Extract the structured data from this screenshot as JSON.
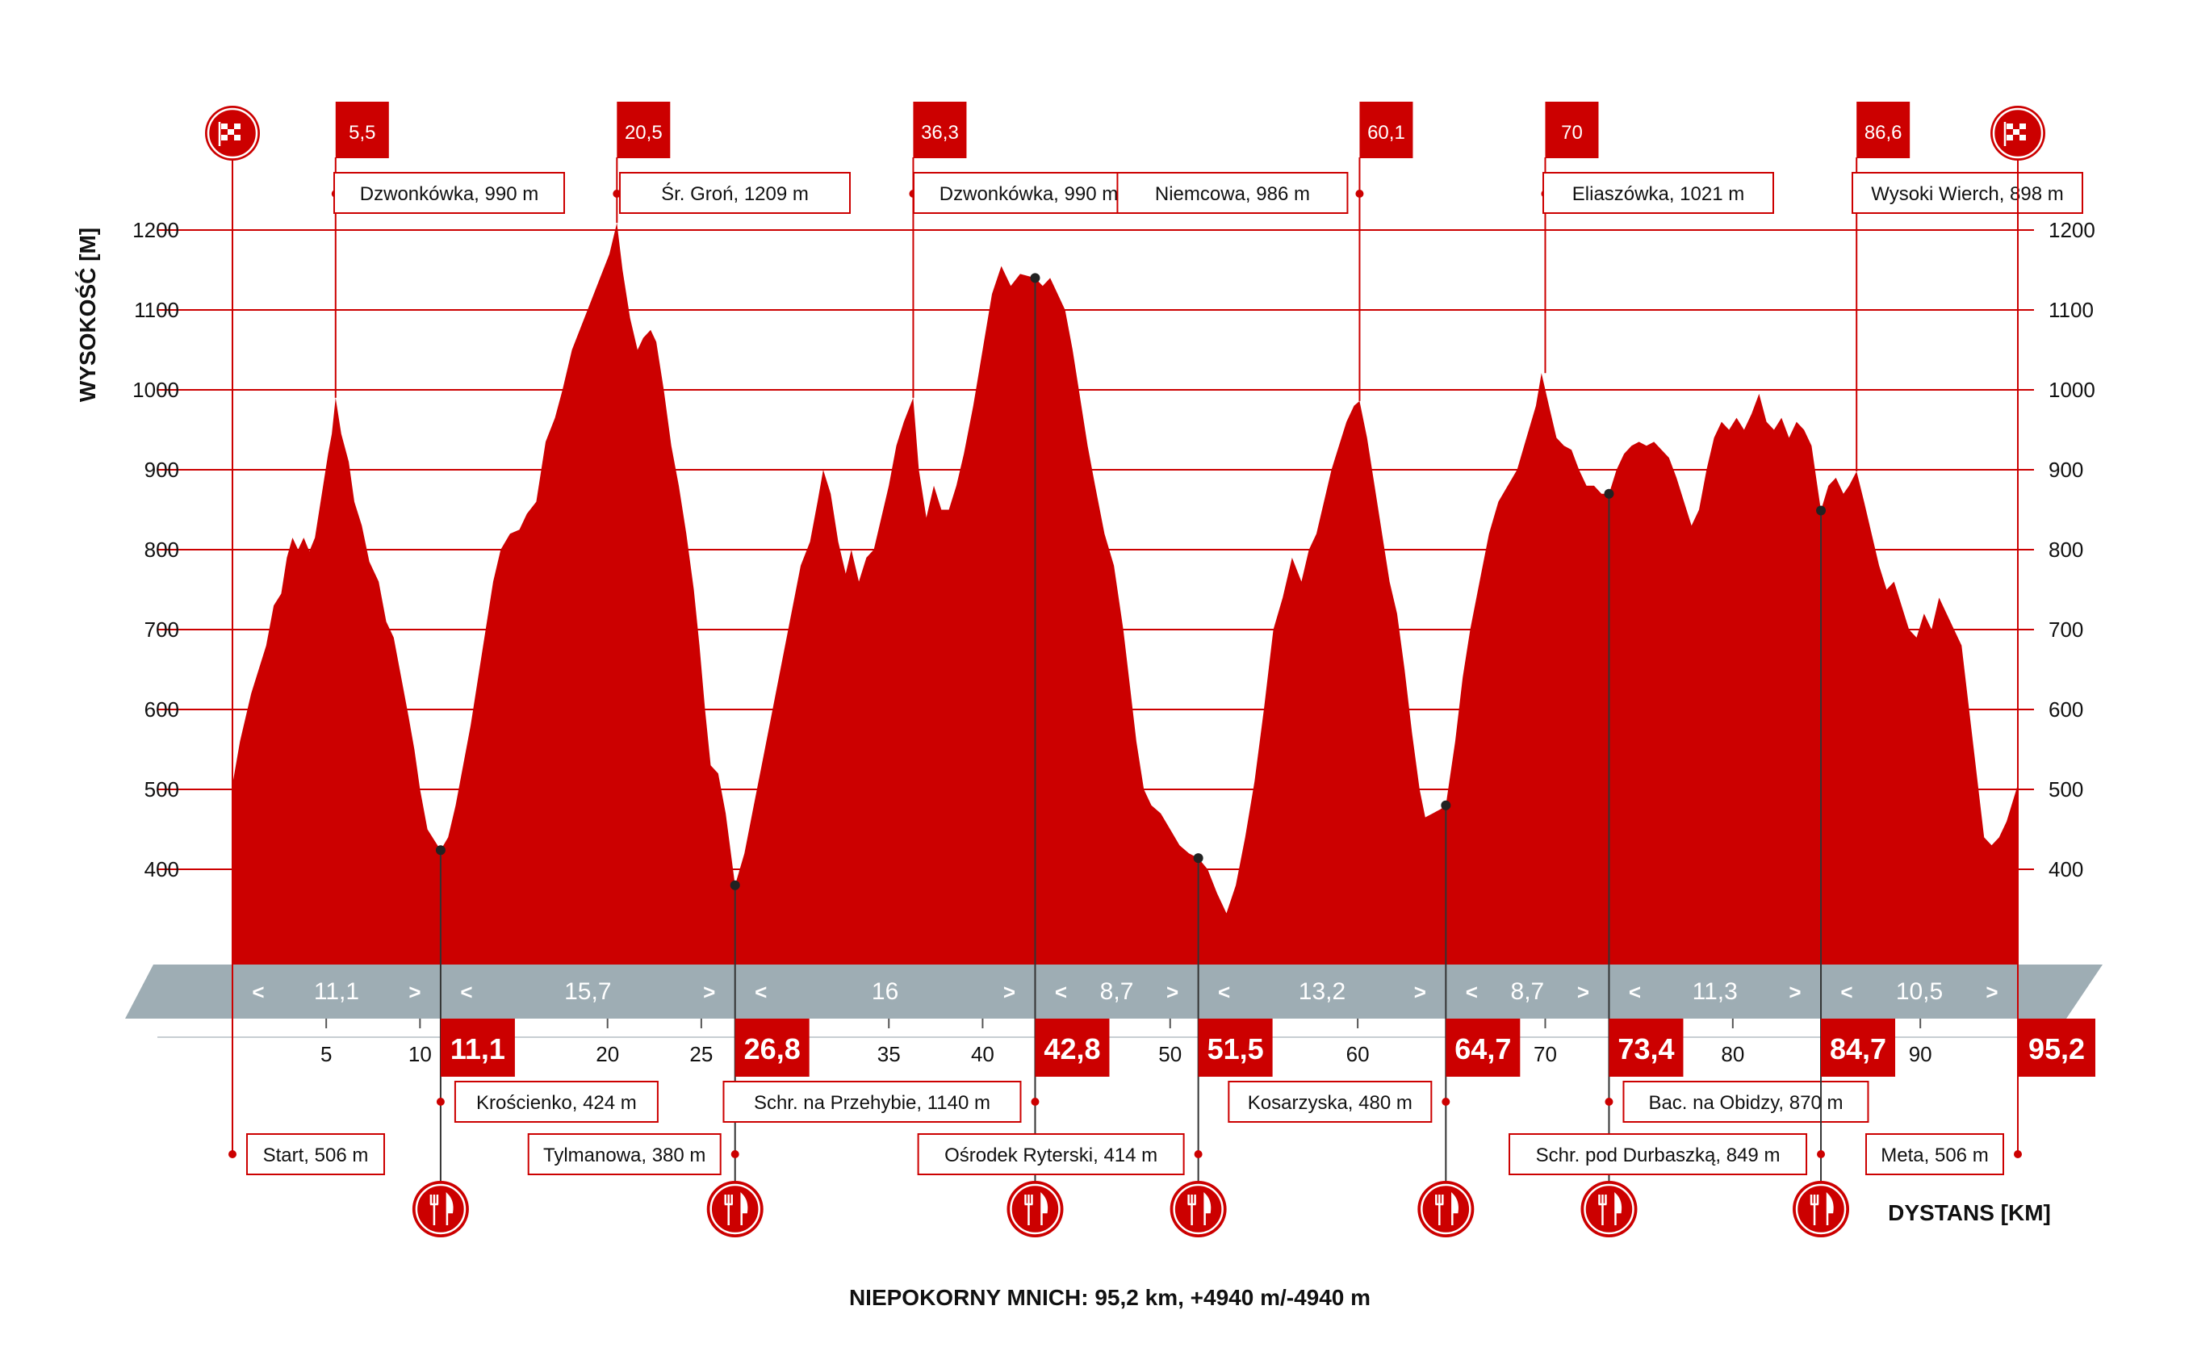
{
  "chart_data": {
    "type": "area",
    "title": "NIEPOKORNY MNICH: 95,2 km, +4940 m/-4940 m",
    "xlabel": "DYSTANS [KM]",
    "ylabel": "WYSOKOŚĆ [M]",
    "xlim": [
      0,
      95.2
    ],
    "ylim": [
      300,
      1200
    ],
    "yticks": [
      400,
      500,
      600,
      700,
      800,
      900,
      1000,
      1100,
      1200
    ],
    "xticks": [
      5,
      10,
      20,
      25,
      35,
      40,
      50,
      60,
      70,
      80,
      90
    ],
    "color": "#cc0000",
    "profile": [
      [
        0,
        506
      ],
      [
        0.4,
        560
      ],
      [
        1.0,
        620
      ],
      [
        1.8,
        680
      ],
      [
        2.2,
        730
      ],
      [
        2.6,
        745
      ],
      [
        2.9,
        790
      ],
      [
        3.2,
        815
      ],
      [
        3.5,
        800
      ],
      [
        3.8,
        815
      ],
      [
        4.1,
        798
      ],
      [
        4.4,
        815
      ],
      [
        4.7,
        860
      ],
      [
        5.1,
        920
      ],
      [
        5.3,
        945
      ],
      [
        5.5,
        990
      ],
      [
        5.8,
        945
      ],
      [
        6.2,
        910
      ],
      [
        6.5,
        860
      ],
      [
        6.9,
        830
      ],
      [
        7.3,
        785
      ],
      [
        7.8,
        760
      ],
      [
        8.2,
        710
      ],
      [
        8.6,
        690
      ],
      [
        9.0,
        640
      ],
      [
        9.4,
        590
      ],
      [
        9.7,
        550
      ],
      [
        10.0,
        500
      ],
      [
        10.4,
        450
      ],
      [
        10.8,
        435
      ],
      [
        11.1,
        424
      ],
      [
        11.5,
        440
      ],
      [
        11.9,
        480
      ],
      [
        12.3,
        530
      ],
      [
        12.7,
        580
      ],
      [
        13.1,
        640
      ],
      [
        13.5,
        700
      ],
      [
        13.9,
        760
      ],
      [
        14.3,
        800
      ],
      [
        14.8,
        820
      ],
      [
        15.3,
        825
      ],
      [
        15.7,
        845
      ],
      [
        16.2,
        860
      ],
      [
        16.7,
        935
      ],
      [
        17.2,
        965
      ],
      [
        17.6,
        1000
      ],
      [
        18.1,
        1050
      ],
      [
        18.6,
        1080
      ],
      [
        19.1,
        1110
      ],
      [
        19.6,
        1140
      ],
      [
        20.1,
        1170
      ],
      [
        20.5,
        1209
      ],
      [
        20.8,
        1150
      ],
      [
        21.2,
        1090
      ],
      [
        21.6,
        1050
      ],
      [
        21.9,
        1065
      ],
      [
        22.3,
        1075
      ],
      [
        22.6,
        1060
      ],
      [
        23.0,
        1000
      ],
      [
        23.4,
        930
      ],
      [
        23.8,
        880
      ],
      [
        24.2,
        820
      ],
      [
        24.6,
        750
      ],
      [
        24.9,
        680
      ],
      [
        25.2,
        600
      ],
      [
        25.5,
        530
      ],
      [
        25.9,
        520
      ],
      [
        26.3,
        470
      ],
      [
        26.8,
        380
      ],
      [
        27.3,
        420
      ],
      [
        27.8,
        480
      ],
      [
        28.3,
        540
      ],
      [
        28.8,
        600
      ],
      [
        29.3,
        660
      ],
      [
        29.8,
        720
      ],
      [
        30.3,
        780
      ],
      [
        30.8,
        810
      ],
      [
        31.2,
        860
      ],
      [
        31.5,
        900
      ],
      [
        31.9,
        870
      ],
      [
        32.3,
        810
      ],
      [
        32.7,
        770
      ],
      [
        33.0,
        800
      ],
      [
        33.4,
        760
      ],
      [
        33.8,
        790
      ],
      [
        34.2,
        800
      ],
      [
        34.6,
        840
      ],
      [
        35.0,
        880
      ],
      [
        35.4,
        930
      ],
      [
        35.8,
        960
      ],
      [
        36.3,
        990
      ],
      [
        36.6,
        900
      ],
      [
        37.0,
        840
      ],
      [
        37.4,
        880
      ],
      [
        37.8,
        850
      ],
      [
        38.2,
        850
      ],
      [
        38.6,
        880
      ],
      [
        39.0,
        920
      ],
      [
        39.5,
        980
      ],
      [
        40.0,
        1050
      ],
      [
        40.5,
        1120
      ],
      [
        41.0,
        1155
      ],
      [
        41.5,
        1130
      ],
      [
        42.0,
        1145
      ],
      [
        42.8,
        1140
      ],
      [
        43.2,
        1130
      ],
      [
        43.6,
        1140
      ],
      [
        44.0,
        1120
      ],
      [
        44.4,
        1100
      ],
      [
        44.8,
        1050
      ],
      [
        45.2,
        990
      ],
      [
        45.6,
        930
      ],
      [
        46.0,
        880
      ],
      [
        46.5,
        820
      ],
      [
        47.0,
        780
      ],
      [
        47.5,
        700
      ],
      [
        47.9,
        620
      ],
      [
        48.2,
        560
      ],
      [
        48.6,
        500
      ],
      [
        49.0,
        480
      ],
      [
        49.5,
        470
      ],
      [
        50.0,
        450
      ],
      [
        50.5,
        430
      ],
      [
        51.0,
        420
      ],
      [
        51.5,
        414
      ],
      [
        52.0,
        400
      ],
      [
        52.5,
        370
      ],
      [
        53.0,
        345
      ],
      [
        53.5,
        380
      ],
      [
        54.0,
        440
      ],
      [
        54.5,
        510
      ],
      [
        55.0,
        600
      ],
      [
        55.5,
        700
      ],
      [
        56.0,
        740
      ],
      [
        56.5,
        790
      ],
      [
        57.0,
        760
      ],
      [
        57.4,
        800
      ],
      [
        57.8,
        820
      ],
      [
        58.2,
        860
      ],
      [
        58.6,
        900
      ],
      [
        59.0,
        930
      ],
      [
        59.4,
        960
      ],
      [
        59.8,
        980
      ],
      [
        60.1,
        986
      ],
      [
        60.5,
        940
      ],
      [
        60.9,
        880
      ],
      [
        61.3,
        820
      ],
      [
        61.7,
        760
      ],
      [
        62.1,
        720
      ],
      [
        62.5,
        650
      ],
      [
        62.9,
        570
      ],
      [
        63.3,
        500
      ],
      [
        63.6,
        465
      ],
      [
        64.0,
        470
      ],
      [
        64.4,
        475
      ],
      [
        64.7,
        480
      ],
      [
        65.2,
        560
      ],
      [
        65.6,
        640
      ],
      [
        66.0,
        700
      ],
      [
        66.5,
        760
      ],
      [
        67.0,
        820
      ],
      [
        67.5,
        860
      ],
      [
        68.0,
        880
      ],
      [
        68.5,
        900
      ],
      [
        69.0,
        940
      ],
      [
        69.5,
        980
      ],
      [
        69.8,
        1021
      ],
      [
        70.2,
        980
      ],
      [
        70.6,
        940
      ],
      [
        71.0,
        930
      ],
      [
        71.4,
        925
      ],
      [
        71.8,
        900
      ],
      [
        72.2,
        880
      ],
      [
        72.6,
        880
      ],
      [
        73.0,
        870
      ],
      [
        73.4,
        870
      ],
      [
        73.8,
        900
      ],
      [
        74.2,
        920
      ],
      [
        74.6,
        930
      ],
      [
        75.0,
        935
      ],
      [
        75.4,
        930
      ],
      [
        75.8,
        935
      ],
      [
        76.2,
        925
      ],
      [
        76.6,
        915
      ],
      [
        77.0,
        890
      ],
      [
        77.4,
        860
      ],
      [
        77.8,
        830
      ],
      [
        78.2,
        850
      ],
      [
        78.6,
        900
      ],
      [
        79.0,
        940
      ],
      [
        79.4,
        960
      ],
      [
        79.8,
        950
      ],
      [
        80.2,
        965
      ],
      [
        80.6,
        950
      ],
      [
        81.0,
        970
      ],
      [
        81.4,
        995
      ],
      [
        81.8,
        960
      ],
      [
        82.2,
        950
      ],
      [
        82.6,
        965
      ],
      [
        83.0,
        940
      ],
      [
        83.4,
        960
      ],
      [
        83.8,
        950
      ],
      [
        84.2,
        930
      ],
      [
        84.7,
        849
      ],
      [
        85.1,
        880
      ],
      [
        85.5,
        890
      ],
      [
        85.9,
        870
      ],
      [
        86.2,
        880
      ],
      [
        86.6,
        898
      ],
      [
        87.0,
        860
      ],
      [
        87.4,
        820
      ],
      [
        87.8,
        780
      ],
      [
        88.2,
        750
      ],
      [
        88.6,
        760
      ],
      [
        89.0,
        730
      ],
      [
        89.4,
        700
      ],
      [
        89.8,
        690
      ],
      [
        90.2,
        720
      ],
      [
        90.6,
        700
      ],
      [
        91.0,
        740
      ],
      [
        91.4,
        720
      ],
      [
        91.8,
        700
      ],
      [
        92.2,
        680
      ],
      [
        92.6,
        600
      ],
      [
        93.0,
        520
      ],
      [
        93.4,
        440
      ],
      [
        93.8,
        430
      ],
      [
        94.2,
        440
      ],
      [
        94.6,
        460
      ],
      [
        95.2,
        506
      ]
    ],
    "segments": [
      {
        "length": "11,1",
        "from": 0,
        "to": 11.1
      },
      {
        "length": "15,7",
        "from": 11.1,
        "to": 26.8
      },
      {
        "length": "16",
        "from": 26.8,
        "to": 42.8
      },
      {
        "length": "8,7",
        "from": 42.8,
        "to": 51.5
      },
      {
        "length": "13,2",
        "from": 51.5,
        "to": 64.7
      },
      {
        "length": "8,7",
        "from": 64.7,
        "to": 73.4
      },
      {
        "length": "11,3",
        "from": 73.4,
        "to": 84.7
      },
      {
        "length": "10,5",
        "from": 84.7,
        "to": 95.2
      }
    ],
    "checkpoints": [
      {
        "km": 0,
        "label": "Start, 506 m",
        "elev": 506,
        "kind": "flag"
      },
      {
        "km": 11.1,
        "badge": "11,1",
        "label": "Krościenko, 424 m",
        "elev": 424,
        "kind": "food"
      },
      {
        "km": 26.8,
        "badge": "26,8",
        "label": "Tylmanowa, 380 m",
        "elev": 380,
        "kind": "food"
      },
      {
        "km": 42.8,
        "badge": "42,8",
        "label": "Schr. na Przehybie, 1140 m",
        "elev": 1140,
        "kind": "food"
      },
      {
        "km": 51.5,
        "badge": "51,5",
        "label": "Ośrodek Ryterski, 414 m",
        "elev": 414,
        "kind": "food"
      },
      {
        "km": 64.7,
        "badge": "64,7",
        "label": "Kosarzyska, 480 m",
        "elev": 480,
        "kind": "food"
      },
      {
        "km": 73.4,
        "badge": "73,4",
        "label": "Bac. na Obidzy, 870 m",
        "elev": 870,
        "kind": "food"
      },
      {
        "km": 84.7,
        "badge": "84,7",
        "label": "Schr. pod Durbaszką, 849 m",
        "elev": 849,
        "kind": "food"
      },
      {
        "km": 95.2,
        "badge": "95,2",
        "label": "Meta, 506 m",
        "elev": 506,
        "kind": "flag"
      }
    ],
    "peaks": [
      {
        "km": 5.5,
        "badge": "5,5",
        "label": "Dzwonkówka, 990 m"
      },
      {
        "km": 20.5,
        "badge": "20,5",
        "label": "Śr. Groń, 1209 m"
      },
      {
        "km": 36.3,
        "badge": "36,3",
        "label": "Dzwonkówka, 990 m"
      },
      {
        "km": 60.1,
        "badge": "60,1",
        "label": "Niemcowa, 986 m"
      },
      {
        "km": 70,
        "badge": "70",
        "label": "Eliaszówka, 1021 m"
      },
      {
        "km": 86.6,
        "badge": "86,6",
        "label": "Wysoki Wierch, 898 m"
      }
    ]
  }
}
